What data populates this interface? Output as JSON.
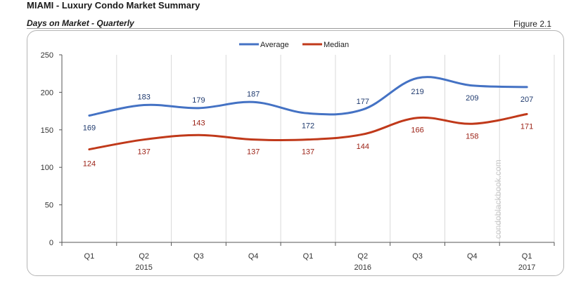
{
  "header": {
    "title": "MIAMI - Luxury Condo Market Summary",
    "subtitle": "Days on Market - Quarterly",
    "figure": "Figure 2.1"
  },
  "watermark": "condoblackbook.com",
  "colors": {
    "average": "#4472c4",
    "median": "#c0391a",
    "average_label": "#1f3a6e",
    "median_label": "#9a1e12",
    "grid": "#d9d9d9",
    "axis": "#555555"
  },
  "chart_data": {
    "type": "line",
    "categories": [
      "Q1",
      "Q2",
      "Q3",
      "Q4",
      "Q1",
      "Q2",
      "Q3",
      "Q4",
      "Q1"
    ],
    "year_labels": [
      {
        "after_index": 1,
        "label": "2015"
      },
      {
        "after_index": 5,
        "label": "2016"
      },
      {
        "after_index": 8,
        "label": "2017"
      }
    ],
    "series": [
      {
        "name": "Average",
        "values": [
          169,
          183,
          179,
          187,
          172,
          177,
          219,
          209,
          207
        ]
      },
      {
        "name": "Median",
        "values": [
          124,
          137,
          143,
          137,
          137,
          144,
          166,
          158,
          171
        ]
      }
    ],
    "ylim": [
      0,
      250
    ],
    "yticks": [
      0,
      50,
      100,
      150,
      200,
      250
    ],
    "grid": "vertical",
    "legend": "top-center",
    "smooth": true
  }
}
